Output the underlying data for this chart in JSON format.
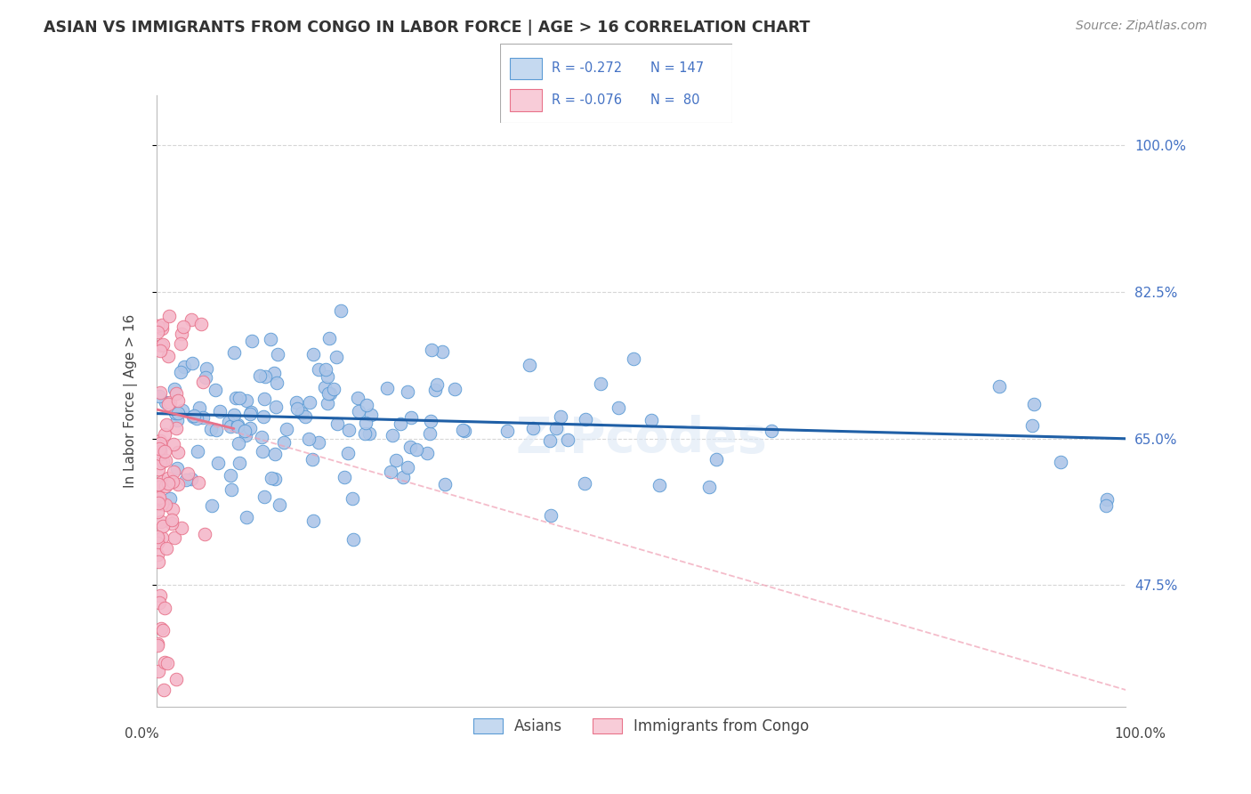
{
  "title": "ASIAN VS IMMIGRANTS FROM CONGO IN LABOR FORCE | AGE > 16 CORRELATION CHART",
  "source": "Source: ZipAtlas.com",
  "ylabel": "In Labor Force | Age > 16",
  "xmin": 0.0,
  "xmax": 100.0,
  "ymin": 33.0,
  "ymax": 106.0,
  "yticks": [
    47.5,
    65.0,
    82.5,
    100.0
  ],
  "ytick_labels": [
    "47.5%",
    "65.0%",
    "82.5%",
    "100.0%"
  ],
  "blue_R": -0.272,
  "blue_N": 147,
  "pink_R": -0.076,
  "pink_N": 80,
  "blue_color": "#aec6e8",
  "pink_color": "#f4b8ca",
  "blue_edge": "#5b9bd5",
  "pink_edge": "#e8728a",
  "trend_blue": "#1f5fa6",
  "trend_pink_solid": "#e8728a",
  "trend_pink_dash": "#f0a0b4",
  "grid_color": "#cccccc",
  "legend_blue_face": "#c5d9f0",
  "legend_pink_face": "#f8ccd8",
  "legend_blue_edge": "#5b9bd5",
  "legend_pink_edge": "#e8728a",
  "blue_trend_x0": 0.0,
  "blue_trend_x1": 100.0,
  "blue_trend_y0": 68.0,
  "blue_trend_y1": 65.0,
  "pink_trend_x0": 0.0,
  "pink_trend_x1": 100.0,
  "pink_trend_y0": 68.5,
  "pink_trend_y1": 35.0,
  "watermark": "ZIPcodes"
}
